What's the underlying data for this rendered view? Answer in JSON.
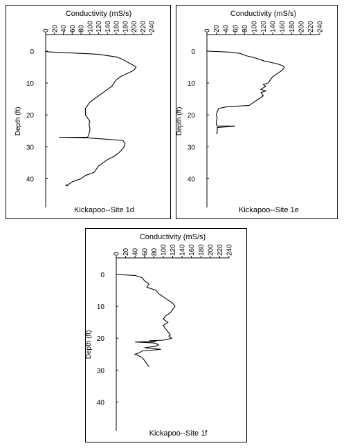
{
  "chart_data": [
    {
      "type": "line",
      "title": "Kickapoo--Site 1d",
      "xlabel": "Conductivity (mS/s)",
      "ylabel": "Depth (ft)",
      "xlim": [
        0,
        240
      ],
      "ylim": [
        0,
        50
      ],
      "xticks": [
        "0",
        "20",
        "40",
        "60",
        "80",
        "100",
        "120",
        "140",
        "160",
        "180",
        "200",
        "220",
        "240"
      ],
      "yticks": [
        "0",
        "10",
        "20",
        "30",
        "40"
      ],
      "x": [
        0,
        5,
        30,
        65,
        95,
        120,
        145,
        160,
        170,
        180,
        190,
        200,
        205,
        200,
        185,
        170,
        160,
        155,
        150,
        140,
        130,
        120,
        110,
        100,
        95,
        90,
        90,
        90,
        95,
        100,
        98,
        100,
        100,
        98,
        95,
        30,
        95,
        175,
        180,
        178,
        172,
        165,
        155,
        140,
        130,
        120,
        115,
        110,
        100,
        90,
        80,
        70,
        60,
        55,
        50,
        45,
        50
      ],
      "y": [
        0,
        0.2,
        0.4,
        0.6,
        0.8,
        1,
        1.5,
        1.8,
        2.3,
        3,
        3.8,
        4.5,
        5,
        6,
        7,
        8,
        9,
        10,
        11,
        12,
        13,
        14,
        15,
        16,
        17,
        18,
        19,
        20,
        21,
        22,
        23,
        24,
        25,
        26,
        27,
        27,
        27.2,
        28,
        29,
        30,
        31,
        32,
        33,
        34,
        35,
        36,
        37,
        38,
        38.5,
        39,
        40,
        40.5,
        41,
        41.5,
        42,
        42,
        42.3
      ]
    },
    {
      "type": "line",
      "title": "Kickapoo--Site 1e",
      "xlabel": "Conductivity (mS/s)",
      "ylabel": "Depth (ft)",
      "xlim": [
        0,
        240
      ],
      "ylim": [
        0,
        50
      ],
      "xticks": [
        "0",
        "20",
        "40",
        "60",
        "80",
        "100",
        "120",
        "140",
        "160",
        "180",
        "200",
        "220",
        "240"
      ],
      "yticks": [
        "0",
        "10",
        "20",
        "30",
        "40"
      ],
      "x": [
        0,
        20,
        50,
        70,
        85,
        100,
        110,
        120,
        135,
        150,
        160,
        165,
        160,
        150,
        140,
        135,
        130,
        120,
        125,
        115,
        125,
        115,
        120,
        110,
        100,
        95,
        90,
        70,
        40,
        25,
        22,
        20,
        22,
        20,
        20,
        22,
        60,
        22,
        22,
        22,
        20
      ],
      "y": [
        0,
        0.1,
        0.3,
        0.7,
        1.5,
        2,
        2.5,
        3,
        3.5,
        4,
        4.5,
        5,
        6,
        7,
        8,
        9,
        10,
        10.5,
        11,
        12,
        12.5,
        13,
        14,
        15,
        16,
        16.5,
        17,
        17.2,
        17.5,
        18,
        19,
        20,
        21,
        22,
        23,
        23.5,
        23.5,
        24,
        25,
        25.5,
        26
      ]
    },
    {
      "type": "line",
      "title": "Kickapoo--Site 1f",
      "xlabel": "Conductivity (mS/s)",
      "ylabel": "Depth (ft)",
      "xlim": [
        0,
        240
      ],
      "ylim": [
        0,
        50
      ],
      "xticks": [
        "0",
        "20",
        "40",
        "60",
        "80",
        "100",
        "120",
        "140",
        "160",
        "180",
        "200",
        "220",
        "240"
      ],
      "yticks": [
        "0",
        "10",
        "20",
        "30",
        "40"
      ],
      "x": [
        0,
        40,
        55,
        60,
        70,
        65,
        85,
        90,
        100,
        110,
        120,
        125,
        120,
        115,
        105,
        100,
        110,
        100,
        105,
        110,
        115,
        112,
        118,
        110,
        100,
        70,
        85,
        40,
        80,
        90,
        85,
        60,
        95,
        55,
        50,
        40,
        55,
        60,
        65,
        70
      ],
      "y": [
        0,
        0.3,
        1,
        2,
        3,
        4,
        5,
        6,
        7,
        8,
        9,
        10,
        11,
        12,
        13,
        14,
        15,
        16,
        17,
        18,
        19,
        19.3,
        20,
        20.3,
        20.6,
        20.8,
        21,
        21.2,
        21.5,
        22,
        22.5,
        23,
        23.5,
        24,
        24.5,
        25,
        26,
        27,
        28,
        29
      ]
    }
  ]
}
